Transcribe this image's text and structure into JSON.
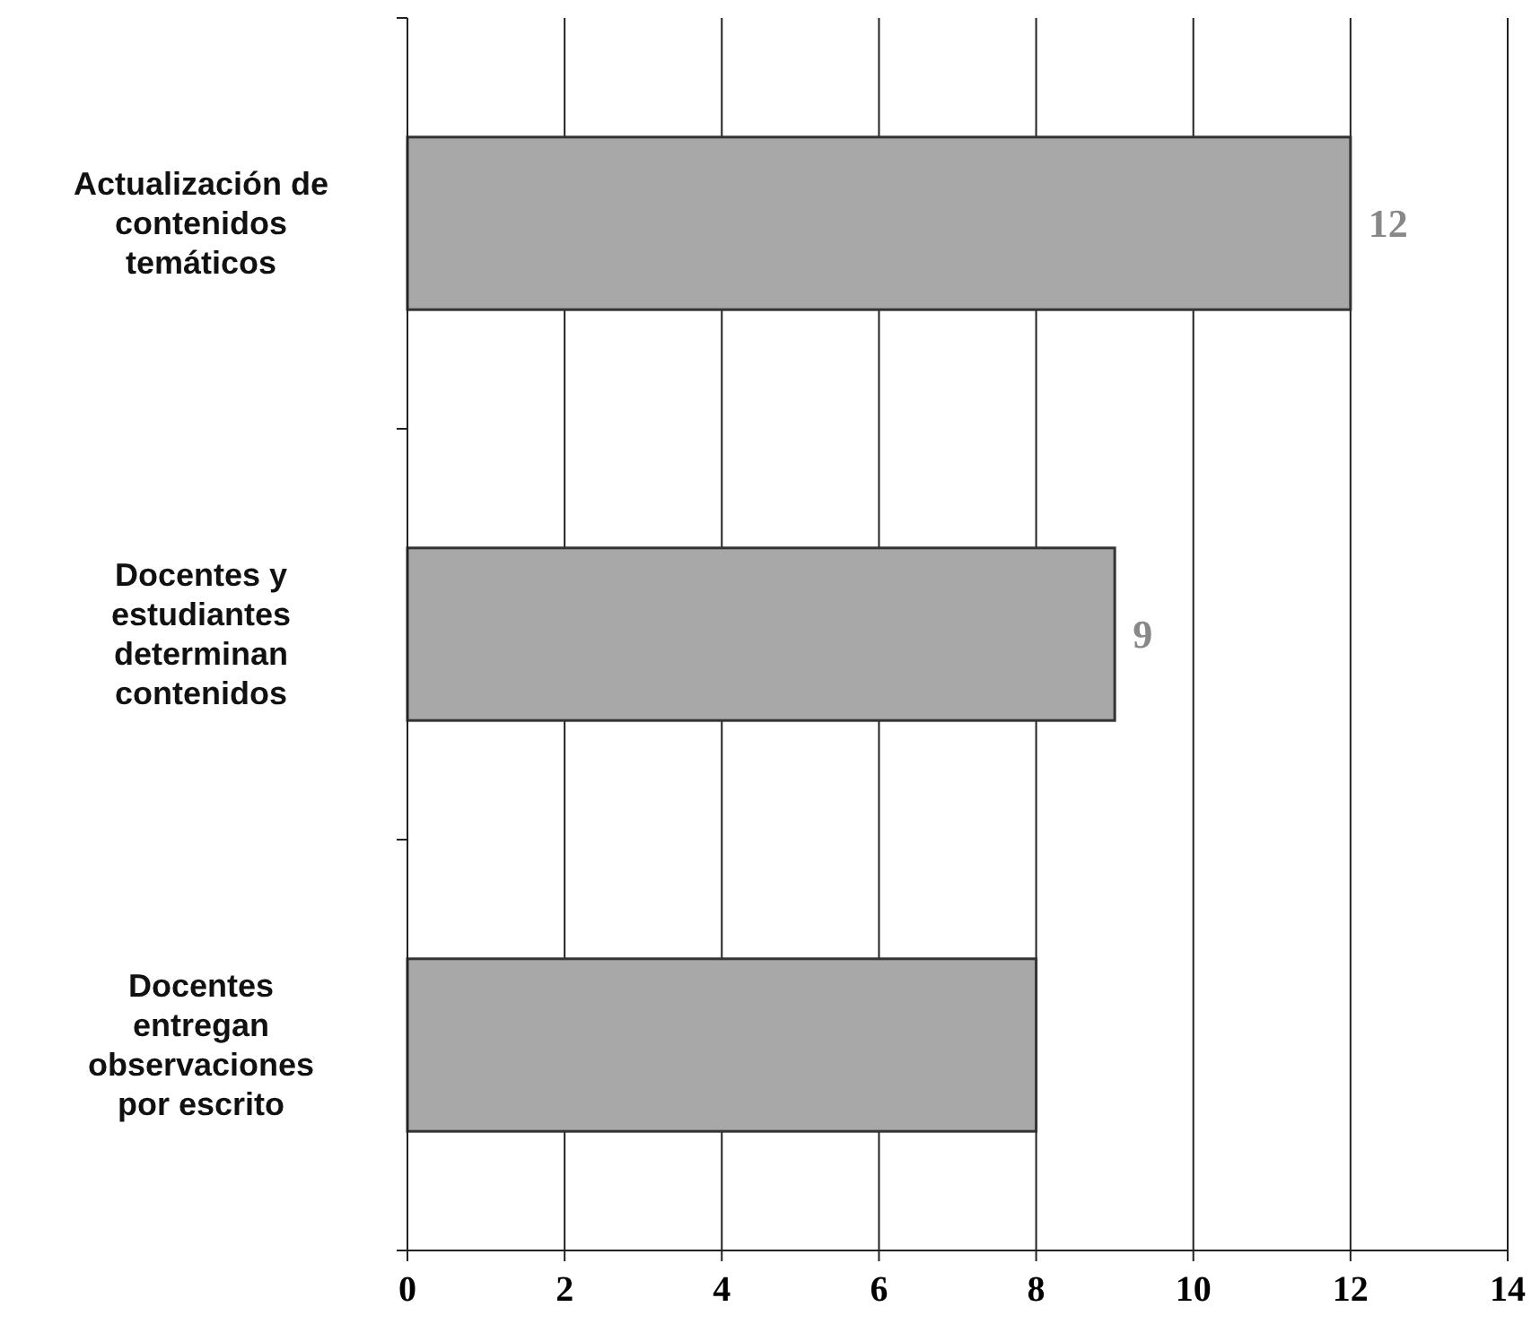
{
  "chart_data": {
    "type": "bar",
    "orientation": "horizontal",
    "categories": [
      "Actualización de contenidos temáticos",
      "Docentes y estudiantes determinan contenidos",
      "Docentes entregan observaciones por escrito"
    ],
    "values": [
      12,
      9,
      8
    ],
    "color": "#a8a8a8",
    "value_labels": [
      "12",
      "9",
      null
    ],
    "xlim": [
      0,
      14
    ],
    "xticks": [
      0,
      2,
      4,
      6,
      8,
      10,
      12,
      14
    ],
    "grid": "x"
  }
}
